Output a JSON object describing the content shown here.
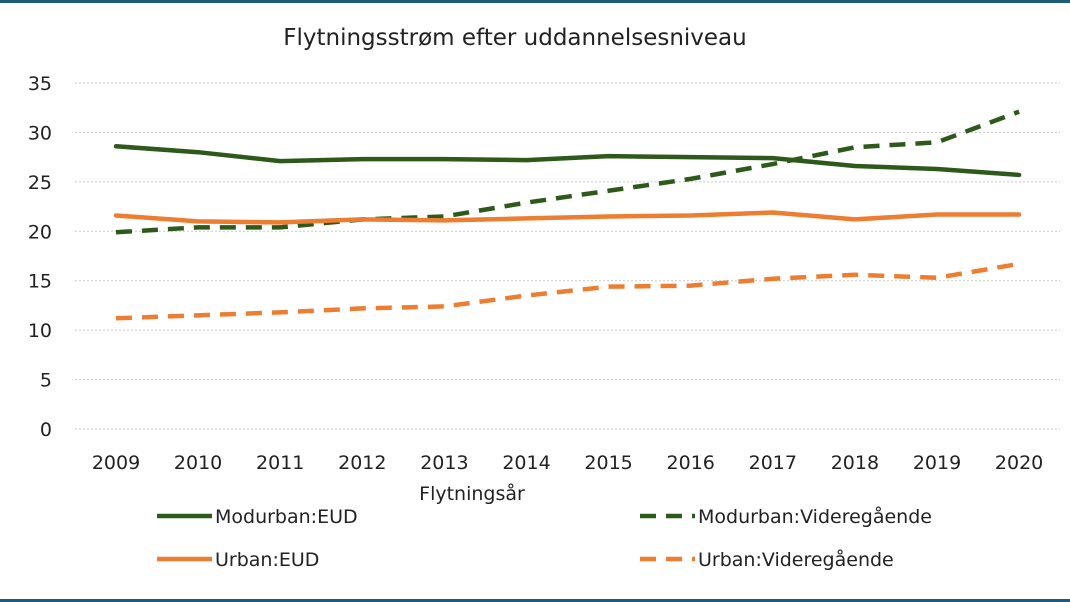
{
  "chart_data": {
    "type": "line",
    "title": "Flytningsstrøm efter uddannelsesniveau",
    "xlabel": "Flytningsår",
    "ylabel": "",
    "ylim": [
      0,
      35
    ],
    "yticks": [
      0,
      5,
      10,
      15,
      20,
      25,
      30,
      35
    ],
    "grid": true,
    "legend_position": "bottom",
    "categories": [
      "2009",
      "2010",
      "2011",
      "2012",
      "2013",
      "2014",
      "2015",
      "2016",
      "2017",
      "2018",
      "2019",
      "2020"
    ],
    "series": [
      {
        "name": "Modurban:EUD",
        "color": "#2d5a1b",
        "dash": false,
        "values": [
          28.6,
          28.0,
          27.1,
          27.3,
          27.3,
          27.2,
          27.6,
          27.5,
          27.4,
          26.6,
          26.3,
          25.7
        ]
      },
      {
        "name": "Modurban:Videregående",
        "color": "#2d5a1b",
        "dash": true,
        "values": [
          19.9,
          20.4,
          20.4,
          21.2,
          21.5,
          22.9,
          24.1,
          25.3,
          26.8,
          28.5,
          29.0,
          32.1
        ]
      },
      {
        "name": "Urban:EUD",
        "color": "#ed7d31",
        "dash": false,
        "values": [
          21.6,
          21.0,
          20.9,
          21.2,
          21.1,
          21.3,
          21.5,
          21.6,
          21.9,
          21.2,
          21.7,
          21.7
        ]
      },
      {
        "name": "Urban:Videregående",
        "color": "#ed7d31",
        "dash": true,
        "values": [
          11.2,
          11.5,
          11.8,
          12.2,
          12.4,
          13.5,
          14.4,
          14.5,
          15.2,
          15.6,
          15.3,
          16.7
        ]
      }
    ]
  }
}
